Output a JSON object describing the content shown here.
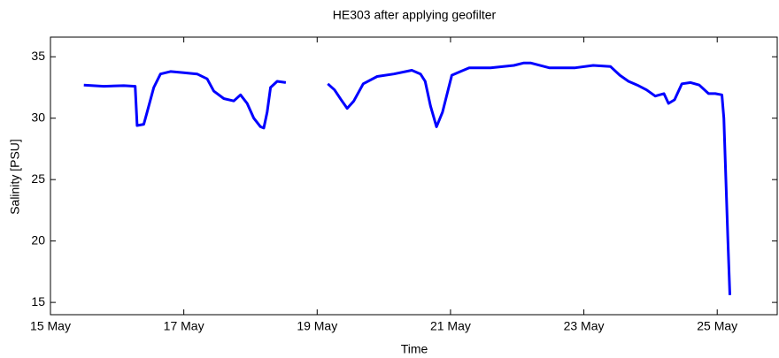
{
  "chart_data": {
    "type": "line",
    "title": "HE303 after applying geofilter",
    "x_label": "Time",
    "y_label": "Salinity [PSU]",
    "xlim": [
      15,
      25.9
    ],
    "ylim": [
      14,
      36.6
    ],
    "xticks": [
      {
        "value": 15,
        "label": "15 May"
      },
      {
        "value": 17,
        "label": "17 May"
      },
      {
        "value": 19,
        "label": "19 May"
      },
      {
        "value": 21,
        "label": "21 May"
      },
      {
        "value": 23,
        "label": "23 May"
      },
      {
        "value": 25,
        "label": "25 May"
      }
    ],
    "yticks": [
      15,
      20,
      25,
      30,
      35
    ],
    "series": [
      {
        "color": "#0000ff",
        "x": [
          15.5,
          15.8,
          16.1,
          16.27,
          16.3,
          16.4,
          16.45,
          16.55,
          16.65,
          16.8,
          17.0,
          17.2,
          17.35,
          17.45,
          17.6,
          17.75,
          17.85,
          17.95,
          18.05,
          18.15,
          18.2,
          18.25,
          18.3,
          18.4,
          18.53,
          18.8,
          19.16,
          19.26,
          19.36,
          19.45,
          19.55,
          19.69,
          19.9,
          20.15,
          20.42,
          20.55,
          20.62,
          20.7,
          20.79,
          20.88,
          21.02,
          21.15,
          21.28,
          21.6,
          21.95,
          22.1,
          22.2,
          22.48,
          22.87,
          23.14,
          23.4,
          23.54,
          23.67,
          23.8,
          23.94,
          24.07,
          24.2,
          24.27,
          24.36,
          24.47,
          24.6,
          24.73,
          24.87,
          24.97,
          25.07,
          25.1,
          25.13,
          25.16,
          25.19
        ],
        "values": [
          32.7,
          32.6,
          32.65,
          32.6,
          29.4,
          29.5,
          30.5,
          32.5,
          33.6,
          33.8,
          33.7,
          33.6,
          33.2,
          32.2,
          31.6,
          31.4,
          31.9,
          31.2,
          30.0,
          29.3,
          29.2,
          30.5,
          32.5,
          33.0,
          32.9,
          null,
          32.8,
          32.3,
          31.5,
          30.8,
          31.4,
          32.8,
          33.4,
          33.6,
          33.9,
          33.6,
          33.0,
          31.0,
          29.3,
          30.5,
          33.5,
          33.8,
          34.1,
          34.1,
          34.3,
          34.5,
          34.5,
          34.1,
          34.1,
          34.3,
          34.2,
          33.5,
          33.0,
          32.7,
          32.3,
          31.8,
          32.0,
          31.2,
          31.5,
          32.8,
          32.9,
          32.7,
          32.0,
          32.0,
          31.9,
          30.0,
          25.0,
          20.0,
          15.6
        ]
      }
    ]
  }
}
